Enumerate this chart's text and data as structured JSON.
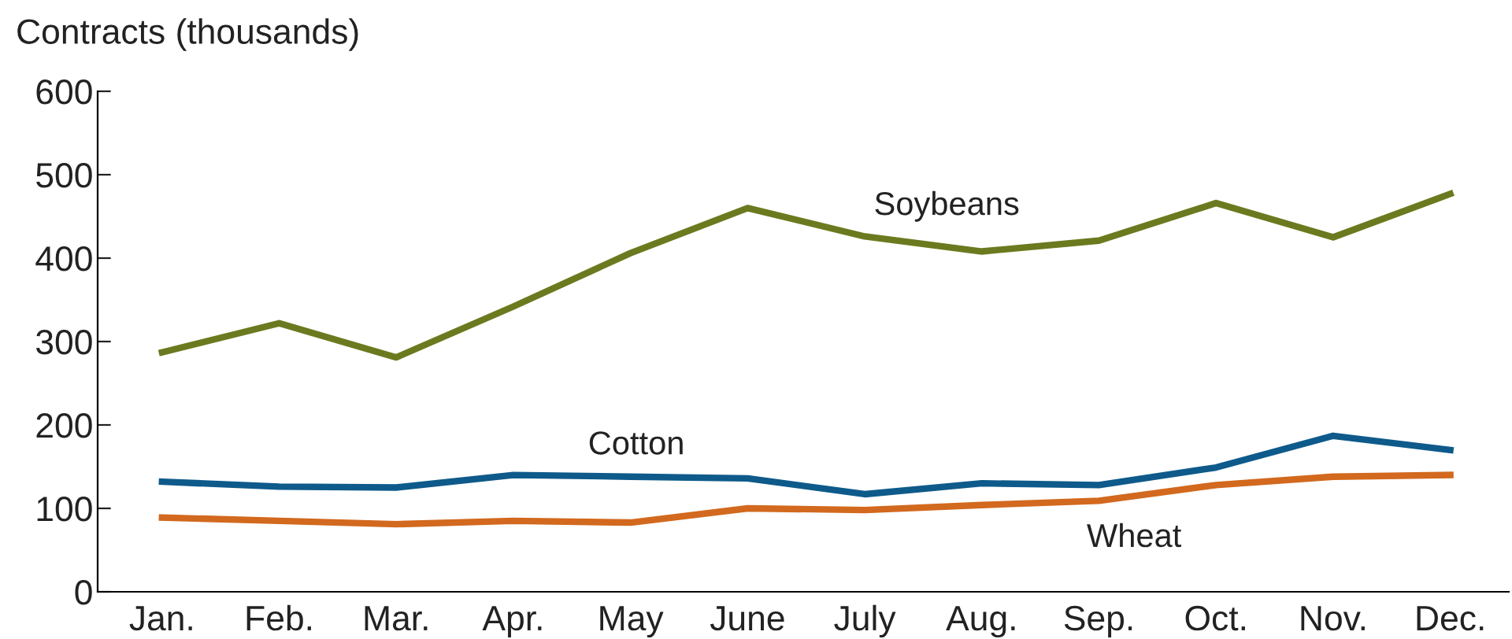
{
  "chart_data": {
    "type": "line",
    "ylabel": "Contracts (thousands)",
    "categories": [
      "Jan.",
      "Feb.",
      "Mar.",
      "Apr.",
      "May",
      "June",
      "July",
      "Aug.",
      "Sep.",
      "Oct.",
      "Nov.",
      "Dec."
    ],
    "series": [
      {
        "name": "Soybeans",
        "color": "#6b7a1f",
        "values": [
          287,
          322,
          281,
          342,
          406,
          460,
          426,
          408,
          421,
          466,
          425,
          477
        ]
      },
      {
        "name": "Cotton",
        "color": "#0e5a8a",
        "values": [
          132,
          126,
          125,
          140,
          138,
          136,
          117,
          130,
          128,
          149,
          187,
          170
        ]
      },
      {
        "name": "Wheat",
        "color": "#d2691e",
        "values": [
          89,
          85,
          81,
          85,
          83,
          100,
          98,
          104,
          109,
          128,
          138,
          140
        ]
      }
    ],
    "ylim": [
      0,
      600
    ],
    "yticks": [
      0,
      100,
      200,
      300,
      400,
      500,
      600
    ],
    "grid": false,
    "legend": false,
    "marker": "none",
    "line_style": "solid"
  }
}
